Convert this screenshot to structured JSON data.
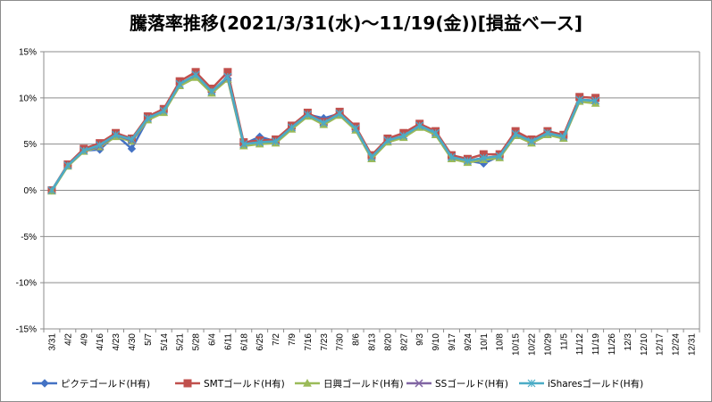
{
  "chart_data": {
    "type": "line",
    "title": "騰落率推移(2021/3/31(水)～11/19(金))[損益ベース]",
    "xlabel": "",
    "ylabel": "",
    "ylim": [
      -0.15,
      0.15
    ],
    "y_ticks": [
      "15%",
      "10%",
      "5%",
      "0%",
      "-5%",
      "-10%",
      "-15%"
    ],
    "y_tick_values": [
      0.15,
      0.1,
      0.05,
      0,
      -0.05,
      -0.1,
      -0.15
    ],
    "grid": true,
    "legend_position": "bottom",
    "categories": [
      "3/31",
      "4/2",
      "4/9",
      "4/16",
      "4/23",
      "4/30",
      "5/7",
      "5/14",
      "5/21",
      "5/28",
      "6/4",
      "6/11",
      "6/18",
      "6/25",
      "7/2",
      "7/9",
      "7/16",
      "7/23",
      "7/30",
      "8/6",
      "8/13",
      "8/20",
      "8/27",
      "9/3",
      "9/10",
      "9/17",
      "9/24",
      "10/1",
      "10/8",
      "10/15",
      "10/22",
      "10/29",
      "11/5",
      "11/12",
      "11/19",
      "11/26",
      "12/3",
      "12/10",
      "12/17",
      "12/24",
      "12/31"
    ],
    "series": [
      {
        "name": "ピクテゴールド(H有)",
        "color": "#4472C4",
        "marker": "diamond",
        "values": [
          0,
          0.027,
          0.043,
          0.044,
          0.06,
          0.045,
          0.077,
          0.086,
          0.115,
          0.124,
          0.106,
          0.121,
          0.05,
          0.058,
          0.053,
          0.068,
          0.082,
          0.078,
          0.083,
          0.067,
          0.036,
          0.054,
          0.059,
          0.07,
          0.062,
          0.036,
          0.032,
          0.029,
          0.037,
          0.061,
          0.052,
          0.063,
          0.058,
          0.098,
          0.097,
          null,
          null,
          null,
          null,
          null,
          null
        ]
      },
      {
        "name": "SMTゴールド(H有)",
        "color": "#C0504D",
        "marker": "square",
        "values": [
          0,
          0.028,
          0.045,
          0.051,
          0.062,
          0.056,
          0.08,
          0.088,
          0.118,
          0.128,
          0.11,
          0.128,
          0.052,
          0.054,
          0.055,
          0.07,
          0.084,
          0.074,
          0.085,
          0.069,
          0.038,
          0.056,
          0.062,
          0.072,
          0.064,
          0.038,
          0.034,
          0.039,
          0.039,
          0.064,
          0.055,
          0.064,
          0.06,
          0.101,
          0.1,
          null,
          null,
          null,
          null,
          null,
          null
        ]
      },
      {
        "name": "日興ゴールド(H有)",
        "color": "#9BBB59",
        "marker": "triangle",
        "values": [
          -0.001,
          0.026,
          0.042,
          0.047,
          0.058,
          0.053,
          0.076,
          0.084,
          0.113,
          0.122,
          0.105,
          0.12,
          0.048,
          0.05,
          0.051,
          0.066,
          0.08,
          0.071,
          0.081,
          0.065,
          0.034,
          0.052,
          0.057,
          0.068,
          0.06,
          0.034,
          0.03,
          0.033,
          0.035,
          0.059,
          0.051,
          0.06,
          0.056,
          0.096,
          0.094,
          null,
          null,
          null,
          null,
          null,
          null
        ]
      },
      {
        "name": "SSゴールド(H有)",
        "color": "#8064A2",
        "marker": "x",
        "values": [
          0,
          0.027,
          0.043,
          0.048,
          0.06,
          0.054,
          0.078,
          0.086,
          0.115,
          0.125,
          0.107,
          0.122,
          0.05,
          0.052,
          0.053,
          0.068,
          0.082,
          0.073,
          0.083,
          0.067,
          0.036,
          0.054,
          0.059,
          0.07,
          0.062,
          0.036,
          0.032,
          0.035,
          0.037,
          0.061,
          0.053,
          0.062,
          0.058,
          0.098,
          0.097,
          null,
          null,
          null,
          null,
          null,
          null
        ]
      },
      {
        "name": "iSharesゴールド(H有)",
        "color": "#4BACC6",
        "marker": "star",
        "values": [
          0,
          0.027,
          0.043,
          0.049,
          0.06,
          0.055,
          0.078,
          0.086,
          0.115,
          0.125,
          0.107,
          0.123,
          0.05,
          0.052,
          0.053,
          0.068,
          0.082,
          0.073,
          0.083,
          0.067,
          0.036,
          0.054,
          0.059,
          0.07,
          0.062,
          0.036,
          0.032,
          0.035,
          0.037,
          0.061,
          0.053,
          0.062,
          0.058,
          0.098,
          0.097,
          null,
          null,
          null,
          null,
          null,
          null
        ]
      }
    ]
  }
}
